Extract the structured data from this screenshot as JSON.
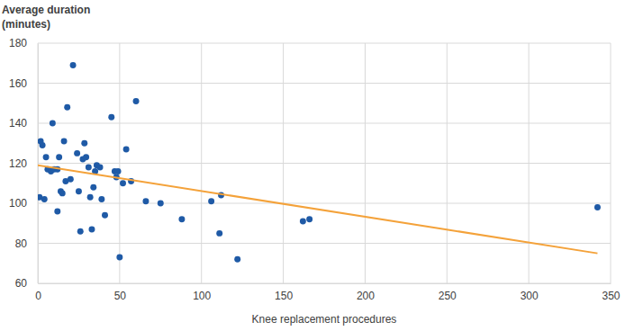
{
  "chart_data": {
    "type": "scatter",
    "y_label": [
      "Average duration",
      "(minutes)"
    ],
    "x_label": "Knee replacement procedures",
    "xlim": [
      0,
      350
    ],
    "xticks": [
      0,
      50,
      100,
      150,
      200,
      250,
      300,
      350
    ],
    "ylim": [
      60,
      180
    ],
    "yticks": [
      60,
      80,
      100,
      120,
      140,
      160,
      180
    ],
    "grid": true,
    "series": [
      {
        "type": "scatter",
        "marker": "circle",
        "color": "#1f5aa6",
        "x": [
          1.7,
          2.8,
          1,
          4,
          5,
          6,
          8,
          9,
          10,
          12,
          12,
          13,
          14,
          15,
          16,
          17,
          18,
          20,
          21.5,
          24,
          25,
          26,
          27.5,
          28.5,
          29.5,
          31,
          32,
          33,
          34,
          35,
          36,
          38,
          39,
          41,
          45,
          47,
          49,
          48,
          50,
          52,
          54,
          57,
          60,
          66,
          75,
          88,
          106,
          111,
          112,
          122,
          162,
          166,
          342
        ],
        "values": [
          131,
          129,
          103,
          102,
          123,
          117,
          116,
          140,
          117,
          117,
          96,
          123,
          106,
          105,
          131,
          111,
          148,
          112,
          169,
          125,
          106,
          86,
          122,
          130,
          123,
          118,
          103,
          87,
          108,
          116,
          119,
          118,
          102,
          94,
          143,
          116,
          116,
          113,
          73,
          110,
          127,
          111,
          151,
          101,
          100,
          92,
          101,
          85,
          104,
          72,
          91,
          92,
          98
        ]
      },
      {
        "type": "line",
        "line_style": "solid",
        "color": "#f4a23a",
        "x": [
          0,
          342
        ],
        "values": [
          119,
          75
        ]
      }
    ]
  }
}
